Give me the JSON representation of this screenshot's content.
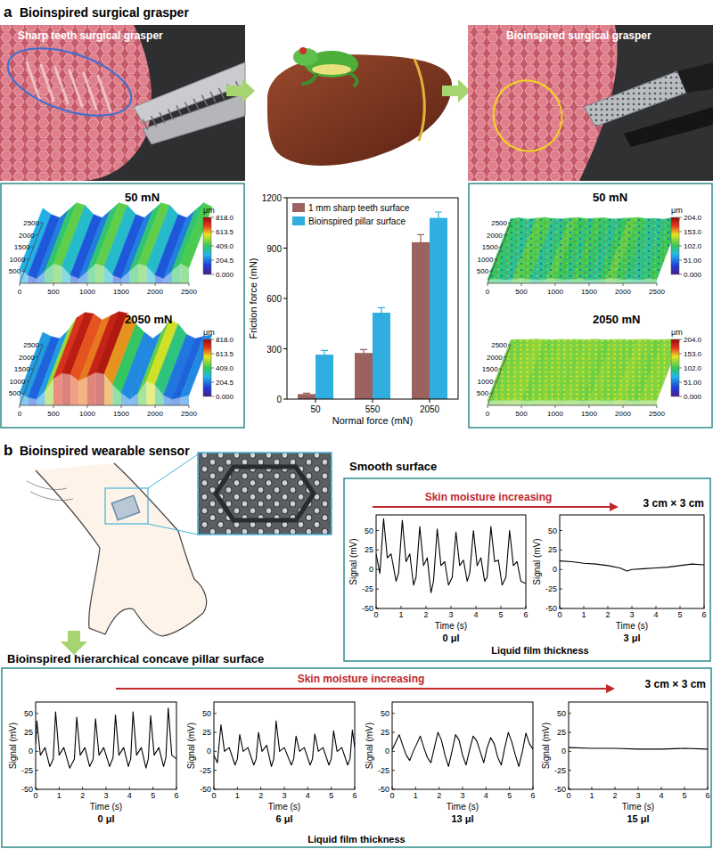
{
  "panel_a": {
    "label": "a",
    "title": "Bioinspired surgical grasper",
    "photo_left_label": "Sharp teeth surgical grasper",
    "photo_right_label": "Bioinspired surgical grasper",
    "surfaces": [
      {
        "load": "50 mN",
        "unit": "μm",
        "xlim": [
          0,
          2500
        ],
        "ylim": [
          0,
          2500
        ],
        "xticks": [
          0,
          500,
          1000,
          1500,
          2000,
          2500
        ],
        "yticks": [
          500,
          1000,
          1500,
          2000,
          2500
        ],
        "colorbar_range": [
          0,
          818
        ],
        "colorbar_ticks": [
          {
            "value": 0,
            "label": "0.000"
          },
          204.5,
          {
            "value": 409,
            "label": "409.0"
          },
          613.5,
          {
            "value": 818,
            "label": "818.0"
          }
        ],
        "profile": [
          350,
          200,
          120,
          300,
          480,
          420,
          200,
          120,
          300,
          480,
          420,
          200,
          120,
          300,
          480,
          420,
          200,
          120,
          300,
          480,
          380
        ]
      },
      {
        "load": "2050 mN",
        "unit": "μm",
        "xlim": [
          0,
          2500
        ],
        "ylim": [
          0,
          2500
        ],
        "xticks": [
          0,
          500,
          1000,
          1500,
          2000,
          2500
        ],
        "yticks": [
          500,
          1000,
          1500,
          2000,
          2500
        ],
        "colorbar_range": [
          0,
          818
        ],
        "colorbar_ticks": [
          {
            "value": 0,
            "label": "0.000"
          },
          204.5,
          {
            "value": 409,
            "label": "409.0"
          },
          613.5,
          {
            "value": 818,
            "label": "818.0"
          }
        ],
        "profile": [
          300,
          200,
          150,
          350,
          650,
          780,
          750,
          600,
          700,
          800,
          760,
          500,
          300,
          150,
          300,
          600,
          500,
          250,
          150,
          200,
          250
        ]
      },
      {
        "load": "50 mN",
        "unit": "μm",
        "xlim": [
          0,
          2500
        ],
        "ylim": [
          0,
          2500
        ],
        "xticks": [
          0,
          500,
          1000,
          1500,
          2000,
          2500
        ],
        "yticks": [
          500,
          1000,
          1500,
          2000,
          2500
        ],
        "colorbar_range": [
          0,
          204
        ],
        "colorbar_ticks": [
          {
            "value": 0,
            "label": "0.000"
          },
          {
            "value": 51,
            "label": "51.00"
          },
          {
            "value": 102,
            "label": "102.0"
          },
          {
            "value": 153,
            "label": "153.0"
          },
          {
            "value": 204,
            "label": "204.0"
          }
        ],
        "profile": [
          90,
          110,
          80,
          100,
          120,
          95,
          85,
          105,
          115,
          90,
          100,
          110,
          85,
          95,
          105,
          120,
          90,
          100,
          80,
          110,
          95
        ]
      },
      {
        "load": "2050 mN",
        "unit": "μm",
        "xlim": [
          0,
          2500
        ],
        "ylim": [
          0,
          2500
        ],
        "xticks": [
          0,
          500,
          1000,
          1500,
          2000,
          2500
        ],
        "yticks": [
          500,
          1000,
          1500,
          2000,
          2500
        ],
        "colorbar_range": [
          0,
          204
        ],
        "colorbar_ticks": [
          {
            "value": 0,
            "label": "0.000"
          },
          {
            "value": 51,
            "label": "51.00"
          },
          {
            "value": 102,
            "label": "102.0"
          },
          {
            "value": 153,
            "label": "153.0"
          },
          {
            "value": 204,
            "label": "204.0"
          }
        ],
        "profile": [
          110,
          120,
          115,
          125,
          118,
          112,
          122,
          116,
          120,
          114,
          125,
          110,
          118,
          121,
          113,
          119,
          124,
          111,
          117,
          122,
          115
        ]
      }
    ]
  },
  "panel_b": {
    "label": "b",
    "title": "Bioinspired wearable sensor",
    "smooth_title": "Smooth surface",
    "pillar_title": "Bioinspired hierarchical concave pillar surface",
    "arrow_label": "Skin moisture increasing",
    "size_label": "3 cm × 3 cm",
    "group_label": "Liquid film thickness"
  },
  "chart_data": [
    {
      "type": "bar",
      "categories": [
        "50",
        "550",
        "2050"
      ],
      "x_label": "Normal force (mN)",
      "y_label": "Friction force (mN)",
      "ylim": [
        0,
        1200
      ],
      "yticks": [
        0,
        300,
        600,
        900,
        1200
      ],
      "legend": "upper left",
      "series": [
        {
          "name": "1 mm sharp teeth surface",
          "color": "#9b625f",
          "values": [
            30,
            275,
            935
          ],
          "errors": [
            5,
            20,
            45
          ]
        },
        {
          "name": "Bioinspired pillar surface",
          "color": "#31aee0",
          "values": [
            265,
            515,
            1080
          ],
          "errors": [
            25,
            30,
            35
          ]
        }
      ]
    },
    {
      "type": "line",
      "title": "0 μl",
      "x_label": "Time (s)",
      "y_label": "Signal (mV)",
      "xlim": [
        0,
        6
      ],
      "xticks": [
        0,
        1,
        2,
        3,
        4,
        5,
        6
      ],
      "ylim": [
        -50,
        70
      ],
      "yticks": [
        -50,
        -25,
        0,
        25,
        50
      ],
      "x": [
        0,
        0.15,
        0.3,
        0.45,
        0.6,
        0.8,
        0.9,
        1.05,
        1.2,
        1.35,
        1.5,
        1.6,
        1.75,
        1.9,
        2.05,
        2.2,
        2.3,
        2.45,
        2.6,
        2.75,
        2.9,
        3.05,
        3.2,
        3.35,
        3.5,
        3.65,
        3.75,
        3.9,
        4.05,
        4.2,
        4.35,
        4.45,
        4.6,
        4.75,
        4.9,
        5.05,
        5.2,
        5.35,
        5.5,
        5.65,
        5.8,
        6
      ],
      "series": [
        {
          "color": "#000000",
          "values": [
            20,
            -5,
            65,
            15,
            20,
            -15,
            -5,
            63,
            10,
            20,
            -20,
            -10,
            55,
            5,
            15,
            -30,
            -15,
            52,
            5,
            10,
            -20,
            -10,
            48,
            5,
            12,
            -15,
            -5,
            50,
            5,
            15,
            -15,
            -10,
            55,
            10,
            12,
            -20,
            -10,
            50,
            5,
            10,
            -15,
            -18
          ]
        }
      ]
    },
    {
      "type": "line",
      "title": "3 μl",
      "x_label": "Time (s)",
      "y_label": "Signal (mV)",
      "xlim": [
        0,
        6
      ],
      "xticks": [
        0,
        1,
        2,
        3,
        4,
        5,
        6
      ],
      "ylim": [
        -50,
        70
      ],
      "yticks": [
        -50,
        -25,
        0,
        25,
        50
      ],
      "x": [
        0,
        0.5,
        1,
        1.5,
        2,
        2.5,
        2.8,
        3,
        3.5,
        4,
        4.5,
        5,
        5.5,
        6
      ],
      "series": [
        {
          "color": "#000000",
          "values": [
            11,
            10,
            8,
            7,
            5,
            2,
            -2,
            0,
            1,
            2,
            3,
            5,
            7,
            6
          ]
        }
      ]
    },
    {
      "type": "line",
      "title": "0 μl",
      "x_label": "Time (s)",
      "y_label": "Signal (mV)",
      "xlim": [
        0,
        6
      ],
      "xticks": [
        0,
        1,
        2,
        3,
        4,
        5,
        6
      ],
      "ylim": [
        -50,
        65
      ],
      "yticks": [
        -50,
        -25,
        0,
        25,
        50
      ],
      "x": [
        0,
        0.05,
        0.2,
        0.4,
        0.6,
        0.75,
        0.85,
        1.0,
        1.2,
        1.45,
        1.65,
        1.75,
        1.9,
        2.1,
        2.3,
        2.45,
        2.55,
        2.7,
        2.9,
        3.15,
        3.3,
        3.4,
        3.55,
        3.75,
        3.95,
        4.05,
        4.15,
        4.3,
        4.5,
        4.7,
        4.8,
        4.9,
        5.05,
        5.25,
        5.45,
        5.55,
        5.65,
        5.8,
        6
      ],
      "series": [
        {
          "color": "#000000",
          "values": [
            10,
            40,
            -5,
            5,
            -20,
            -10,
            52,
            -5,
            5,
            -22,
            -10,
            45,
            -5,
            5,
            -20,
            -10,
            43,
            -5,
            5,
            -20,
            -8,
            48,
            -5,
            5,
            -20,
            -10,
            52,
            -5,
            5,
            -22,
            -10,
            47,
            -5,
            5,
            -20,
            -8,
            57,
            -5,
            -10
          ]
        }
      ]
    },
    {
      "type": "line",
      "title": "6 μl",
      "x_label": "Time (s)",
      "y_label": "Signal (mV)",
      "xlim": [
        0,
        6
      ],
      "xticks": [
        0,
        1,
        2,
        3,
        4,
        5,
        6
      ],
      "ylim": [
        -50,
        65
      ],
      "yticks": [
        -50,
        -25,
        0,
        25,
        50
      ],
      "x": [
        0,
        0.15,
        0.3,
        0.45,
        0.65,
        0.9,
        1.0,
        1.1,
        1.25,
        1.45,
        1.7,
        1.8,
        1.9,
        2.05,
        2.25,
        2.45,
        2.55,
        2.65,
        2.8,
        3.0,
        3.3,
        3.4,
        3.5,
        3.65,
        3.85,
        4.1,
        4.2,
        4.3,
        4.45,
        4.65,
        4.9,
        5.0,
        5.1,
        5.25,
        5.45,
        5.7,
        5.8,
        5.9,
        6
      ],
      "series": [
        {
          "color": "#000000",
          "values": [
            -5,
            -15,
            35,
            0,
            5,
            -18,
            -10,
            22,
            0,
            5,
            -18,
            -10,
            25,
            0,
            8,
            -20,
            -10,
            40,
            0,
            5,
            -18,
            -10,
            20,
            0,
            5,
            -18,
            -10,
            23,
            0,
            5,
            -18,
            -10,
            27,
            0,
            5,
            -18,
            -10,
            28,
            5
          ]
        }
      ]
    },
    {
      "type": "line",
      "title": "13 μl",
      "x_label": "Time (s)",
      "y_label": "Signal (mV)",
      "xlim": [
        0,
        6
      ],
      "xticks": [
        0,
        1,
        2,
        3,
        4,
        5,
        6
      ],
      "ylim": [
        -50,
        65
      ],
      "yticks": [
        -50,
        -25,
        0,
        25,
        50
      ],
      "x": [
        0,
        0.15,
        0.3,
        0.45,
        0.6,
        0.75,
        0.9,
        1.05,
        1.2,
        1.35,
        1.5,
        1.65,
        1.8,
        1.95,
        2.1,
        2.25,
        2.4,
        2.55,
        2.7,
        2.85,
        3.0,
        3.15,
        3.3,
        3.45,
        3.6,
        3.75,
        3.9,
        4.05,
        4.2,
        4.35,
        4.5,
        4.65,
        4.8,
        4.95,
        5.1,
        5.25,
        5.4,
        5.55,
        5.7,
        5.85,
        6
      ],
      "series": [
        {
          "color": "#000000",
          "values": [
            2,
            12,
            22,
            8,
            -5,
            -12,
            0,
            10,
            20,
            5,
            -8,
            -15,
            5,
            25,
            15,
            -5,
            -20,
            0,
            22,
            15,
            -5,
            -18,
            2,
            20,
            14,
            0,
            -15,
            5,
            18,
            10,
            -8,
            -18,
            5,
            25,
            12,
            -5,
            -20,
            0,
            24,
            10,
            3
          ]
        }
      ]
    },
    {
      "type": "line",
      "title": "15 μl",
      "x_label": "Time (s)",
      "y_label": "Signal (mV)",
      "xlim": [
        0,
        6
      ],
      "xticks": [
        0,
        1,
        2,
        3,
        4,
        5,
        6
      ],
      "ylim": [
        -50,
        65
      ],
      "yticks": [
        -50,
        -25,
        0,
        25,
        50
      ],
      "x": [
        0,
        1,
        2,
        3,
        4,
        5,
        6
      ],
      "series": [
        {
          "color": "#000000",
          "values": [
            5,
            4,
            4,
            3,
            3,
            4,
            3
          ]
        }
      ]
    }
  ]
}
